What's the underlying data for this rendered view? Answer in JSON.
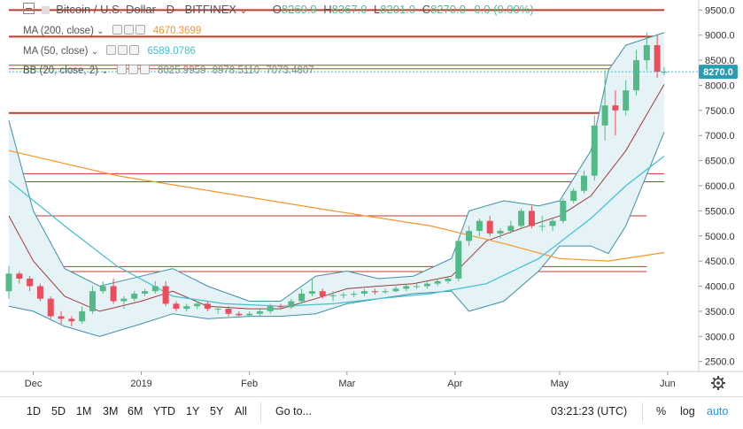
{
  "header": {
    "symbol": "Bitcoin / U.S. Dollar",
    "interval": "D",
    "exchange": "BITFINEX",
    "o_label": "O",
    "o": "8269.9",
    "h_label": "H",
    "h": "8367.0",
    "l_label": "L",
    "l": "8201.0",
    "c_label": "C",
    "c": "8270.0",
    "change": "0.0 (0.00%)"
  },
  "indicators": [
    {
      "label": "MA (200, close)",
      "values": [
        "4670.3699"
      ],
      "color": "#f7962a"
    },
    {
      "label": "MA (50, close)",
      "values": [
        "6589.0786"
      ],
      "color": "#3fbfcf"
    },
    {
      "label": "BB (20, close, 2)",
      "values": [
        "8025.9959",
        "8978.5110",
        "7073.4807"
      ],
      "color": "#8a8a8a"
    }
  ],
  "price_badge": "8270.0",
  "colors": {
    "up": "#53b987",
    "down": "#eb4d5c",
    "ma200": "#f7962a",
    "ma50": "#3fbfcf",
    "bb_mid": "#9b3b3b",
    "bb_band": "#3d8fa8",
    "bb_fill": "#e6f3f6",
    "hline": "#c0392b",
    "last": "#3fbfcf"
  },
  "bottom": {
    "ranges": [
      "1D",
      "5D",
      "1M",
      "3M",
      "6M",
      "YTD",
      "1Y",
      "5Y",
      "All"
    ],
    "goto": "Go to...",
    "time": "03:21:23 (UTC)",
    "percent": "%",
    "log": "log",
    "auto": "auto"
  },
  "chart_data": {
    "type": "candlestick",
    "x_range": [
      "2018-11-24",
      "2019-05-31"
    ],
    "ylim": [
      2300,
      9700
    ],
    "y_ticks": [
      2500,
      3000,
      3500,
      4000,
      4500,
      5000,
      5500,
      6000,
      6500,
      7000,
      7500,
      8000,
      8500,
      9000,
      9500
    ],
    "x_ticks": [
      {
        "label": "Dec",
        "date": "2018-12-01"
      },
      {
        "label": "2019",
        "date": "2019-01-01"
      },
      {
        "label": "Feb",
        "date": "2019-02-01"
      },
      {
        "label": "Mar",
        "date": "2019-03-01"
      },
      {
        "label": "Apr",
        "date": "2019-04-01"
      },
      {
        "label": "May",
        "date": "2019-05-01"
      },
      {
        "label": "Jun",
        "date": "2019-06-01"
      }
    ],
    "last_price": 8270.0,
    "horizontal_lines": [
      {
        "y": 9500,
        "from": "2018-11-24",
        "to": "2019-05-31"
      },
      {
        "y": 8970,
        "from": "2018-11-24",
        "to": "2019-05-31"
      },
      {
        "y": 8400,
        "from": "2018-11-24",
        "to": "2019-05-31"
      },
      {
        "y": 8330,
        "from": "2018-11-24",
        "to": "2019-05-31"
      },
      {
        "y": 7450,
        "from": "2018-11-24",
        "to": "2019-05-31"
      },
      {
        "y": 6240,
        "from": "2018-11-24",
        "to": "2019-05-31"
      },
      {
        "y": 6080,
        "from": "2018-11-24",
        "to": "2019-05-31"
      },
      {
        "y": 5400,
        "from": "2018-11-24",
        "to": "2019-05-26"
      },
      {
        "y": 4390,
        "from": "2018-11-24",
        "to": "2019-05-26"
      },
      {
        "y": 4290,
        "from": "2018-11-24",
        "to": "2019-05-26"
      }
    ],
    "ma200": {
      "x": [
        "2018-11-24",
        "2018-12-25",
        "2019-01-25",
        "2019-02-25",
        "2019-03-25",
        "2019-04-15",
        "2019-05-01",
        "2019-05-15",
        "2019-05-31"
      ],
      "y": [
        6700,
        6200,
        5850,
        5500,
        5200,
        4850,
        4550,
        4500,
        4670
      ]
    },
    "ma50": {
      "x": [
        "2018-11-24",
        "2018-12-10",
        "2018-12-25",
        "2019-01-10",
        "2019-01-25",
        "2019-02-10",
        "2019-02-25",
        "2019-03-10",
        "2019-03-25",
        "2019-04-10",
        "2019-04-25",
        "2019-05-10",
        "2019-05-20",
        "2019-05-31"
      ],
      "y": [
        6100,
        5200,
        4400,
        3800,
        3650,
        3600,
        3650,
        3750,
        3850,
        4050,
        4550,
        5350,
        6000,
        6590
      ]
    },
    "bb_mid": {
      "x": [
        "2018-11-24",
        "2018-12-01",
        "2018-12-10",
        "2018-12-20",
        "2019-01-01",
        "2019-01-10",
        "2019-01-20",
        "2019-02-01",
        "2019-02-10",
        "2019-02-20",
        "2019-03-01",
        "2019-03-10",
        "2019-03-20",
        "2019-03-31",
        "2019-04-10",
        "2019-04-20",
        "2019-05-01",
        "2019-05-10",
        "2019-05-20",
        "2019-05-31"
      ],
      "y": [
        5400,
        4500,
        3800,
        3500,
        3700,
        3900,
        3600,
        3550,
        3550,
        3750,
        3950,
        4000,
        4050,
        4200,
        4900,
        5150,
        5400,
        5800,
        6700,
        8020
      ]
    },
    "bb_upper": {
      "x": [
        "2018-11-24",
        "2018-12-01",
        "2018-12-10",
        "2018-12-20",
        "2019-01-01",
        "2019-01-10",
        "2019-01-20",
        "2019-02-01",
        "2019-02-10",
        "2019-02-20",
        "2019-03-01",
        "2019-03-10",
        "2019-03-20",
        "2019-03-31",
        "2019-04-05",
        "2019-04-15",
        "2019-04-25",
        "2019-05-01",
        "2019-05-10",
        "2019-05-15",
        "2019-05-20",
        "2019-05-31"
      ],
      "y": [
        7300,
        5500,
        4350,
        4000,
        4200,
        4350,
        4000,
        3700,
        3700,
        4200,
        4300,
        4150,
        4200,
        4550,
        5500,
        5700,
        5600,
        5700,
        6700,
        8300,
        8800,
        9050
      ]
    },
    "bb_lower": {
      "x": [
        "2018-11-24",
        "2018-12-01",
        "2018-12-10",
        "2018-12-20",
        "2019-01-01",
        "2019-01-10",
        "2019-01-20",
        "2019-02-01",
        "2019-02-10",
        "2019-02-20",
        "2019-03-01",
        "2019-03-10",
        "2019-03-20",
        "2019-03-31",
        "2019-04-05",
        "2019-04-15",
        "2019-04-25",
        "2019-05-01",
        "2019-05-10",
        "2019-05-15",
        "2019-05-20",
        "2019-05-31"
      ],
      "y": [
        3600,
        3500,
        3200,
        3000,
        3250,
        3450,
        3350,
        3400,
        3400,
        3450,
        3650,
        3750,
        3850,
        3900,
        3500,
        3700,
        4300,
        4800,
        4800,
        4650,
        5200,
        7070
      ]
    },
    "candles": {
      "dates": [
        "2018-11-24",
        "2018-11-27",
        "2018-11-30",
        "2018-12-03",
        "2018-12-06",
        "2018-12-09",
        "2018-12-12",
        "2018-12-15",
        "2018-12-18",
        "2018-12-21",
        "2018-12-24",
        "2018-12-27",
        "2018-12-30",
        "2019-01-02",
        "2019-01-05",
        "2019-01-08",
        "2019-01-11",
        "2019-01-14",
        "2019-01-17",
        "2019-01-20",
        "2019-01-23",
        "2019-01-26",
        "2019-01-29",
        "2019-02-01",
        "2019-02-04",
        "2019-02-07",
        "2019-02-10",
        "2019-02-13",
        "2019-02-16",
        "2019-02-19",
        "2019-02-22",
        "2019-02-25",
        "2019-02-28",
        "2019-03-03",
        "2019-03-06",
        "2019-03-09",
        "2019-03-12",
        "2019-03-15",
        "2019-03-18",
        "2019-03-21",
        "2019-03-24",
        "2019-03-27",
        "2019-03-30",
        "2019-04-02",
        "2019-04-05",
        "2019-04-08",
        "2019-04-11",
        "2019-04-14",
        "2019-04-17",
        "2019-04-20",
        "2019-04-23",
        "2019-04-26",
        "2019-04-29",
        "2019-05-02",
        "2019-05-05",
        "2019-05-08",
        "2019-05-11",
        "2019-05-14",
        "2019-05-17",
        "2019-05-20",
        "2019-05-23",
        "2019-05-26",
        "2019-05-29",
        "2019-05-31"
      ],
      "open": [
        3900,
        4250,
        4150,
        4000,
        3750,
        3400,
        3350,
        3300,
        3500,
        3900,
        4000,
        3700,
        3750,
        3850,
        3900,
        4000,
        3650,
        3550,
        3600,
        3650,
        3550,
        3550,
        3450,
        3420,
        3450,
        3500,
        3600,
        3580,
        3700,
        3850,
        3900,
        3800,
        3820,
        3830,
        3850,
        3900,
        3880,
        3900,
        3950,
        4000,
        4000,
        4050,
        4100,
        4150,
        4900,
        5100,
        5300,
        5050,
        5100,
        5200,
        5500,
        5200,
        5200,
        5300,
        5700,
        5900,
        6200,
        7200,
        7600,
        7500,
        7900,
        8500,
        8800,
        8270
      ],
      "close": [
        4250,
        4150,
        4000,
        3750,
        3400,
        3350,
        3300,
        3500,
        3900,
        4000,
        3700,
        3750,
        3850,
        3900,
        4000,
        3650,
        3550,
        3600,
        3650,
        3550,
        3550,
        3450,
        3420,
        3450,
        3500,
        3600,
        3580,
        3700,
        3850,
        3900,
        3800,
        3820,
        3830,
        3850,
        3900,
        3880,
        3900,
        3950,
        4000,
        4000,
        4050,
        4100,
        4150,
        4900,
        5100,
        5300,
        5050,
        5100,
        5200,
        5500,
        5200,
        5200,
        5300,
        5700,
        5900,
        6200,
        7200,
        7600,
        7500,
        7900,
        8500,
        8800,
        8270,
        8270
      ],
      "high": [
        4400,
        4300,
        4200,
        4050,
        3800,
        3500,
        3400,
        3600,
        4000,
        4100,
        4150,
        3800,
        3900,
        3950,
        4100,
        4100,
        3700,
        3650,
        3700,
        3700,
        3600,
        3600,
        3500,
        3500,
        3550,
        3650,
        3650,
        3750,
        3950,
        4150,
        3950,
        3900,
        3880,
        3900,
        3950,
        3950,
        3950,
        4000,
        4050,
        4050,
        4100,
        4150,
        4200,
        4950,
        5200,
        5350,
        5400,
        5150,
        5300,
        5550,
        5600,
        5400,
        5350,
        5750,
        5950,
        6300,
        7400,
        8300,
        7900,
        8100,
        8700,
        9050,
        9000,
        8367
      ],
      "low": [
        3750,
        4050,
        3900,
        3700,
        3350,
        3250,
        3200,
        3250,
        3450,
        3850,
        3650,
        3550,
        3700,
        3800,
        3850,
        3600,
        3500,
        3500,
        3550,
        3500,
        3450,
        3400,
        3400,
        3380,
        3400,
        3450,
        3550,
        3550,
        3650,
        3800,
        3750,
        3700,
        3750,
        3780,
        3800,
        3830,
        3850,
        3880,
        3900,
        3950,
        3950,
        4000,
        4050,
        4100,
        4800,
        5000,
        5000,
        4950,
        5050,
        5150,
        5150,
        5100,
        5100,
        5250,
        5650,
        5850,
        6100,
        6900,
        7000,
        7400,
        7800,
        8300,
        8150,
        8201
      ]
    }
  }
}
